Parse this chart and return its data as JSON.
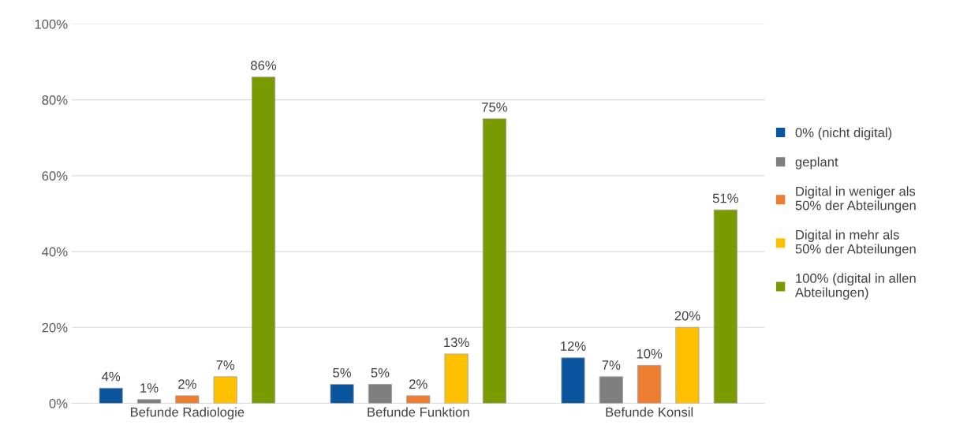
{
  "chart_data": {
    "type": "bar",
    "categories": [
      "Befunde Radiologie",
      "Befunde Funktion",
      "Befunde Konsil"
    ],
    "series": [
      {
        "name": "0% (nicht digital)",
        "color": "#0b559f",
        "values": [
          4,
          5,
          12
        ],
        "value_labels": [
          "4%",
          "5%",
          "12%"
        ]
      },
      {
        "name": "geplant",
        "color": "#7f7f7f",
        "values": [
          1,
          5,
          7
        ],
        "value_labels": [
          "1%",
          "5%",
          "7%"
        ]
      },
      {
        "name": "Digital in weniger als\n50% der Abteilungen",
        "color": "#ed7d31",
        "values": [
          2,
          2,
          10
        ],
        "value_labels": [
          "2%",
          "2%",
          "10%"
        ]
      },
      {
        "name": "Digital in mehr als\n50% der Abteilungen",
        "color": "#ffc000",
        "values": [
          7,
          13,
          20
        ],
        "value_labels": [
          "7%",
          "13%",
          "20%"
        ]
      },
      {
        "name": "100% (digital in allen\nAbteilungen)",
        "color": "#7a9a01",
        "values": [
          86,
          75,
          51
        ],
        "value_labels": [
          "86%",
          "75%",
          "51%"
        ]
      }
    ],
    "ylim": [
      0,
      100
    ],
    "yticks": [
      {
        "value": 0,
        "label": "0%"
      },
      {
        "value": 20,
        "label": "20%"
      },
      {
        "value": 40,
        "label": "40%"
      },
      {
        "value": 60,
        "label": "60%"
      },
      {
        "value": 80,
        "label": "80%"
      },
      {
        "value": 100,
        "label": "100%"
      }
    ],
    "grid": "y",
    "legend": "right"
  }
}
